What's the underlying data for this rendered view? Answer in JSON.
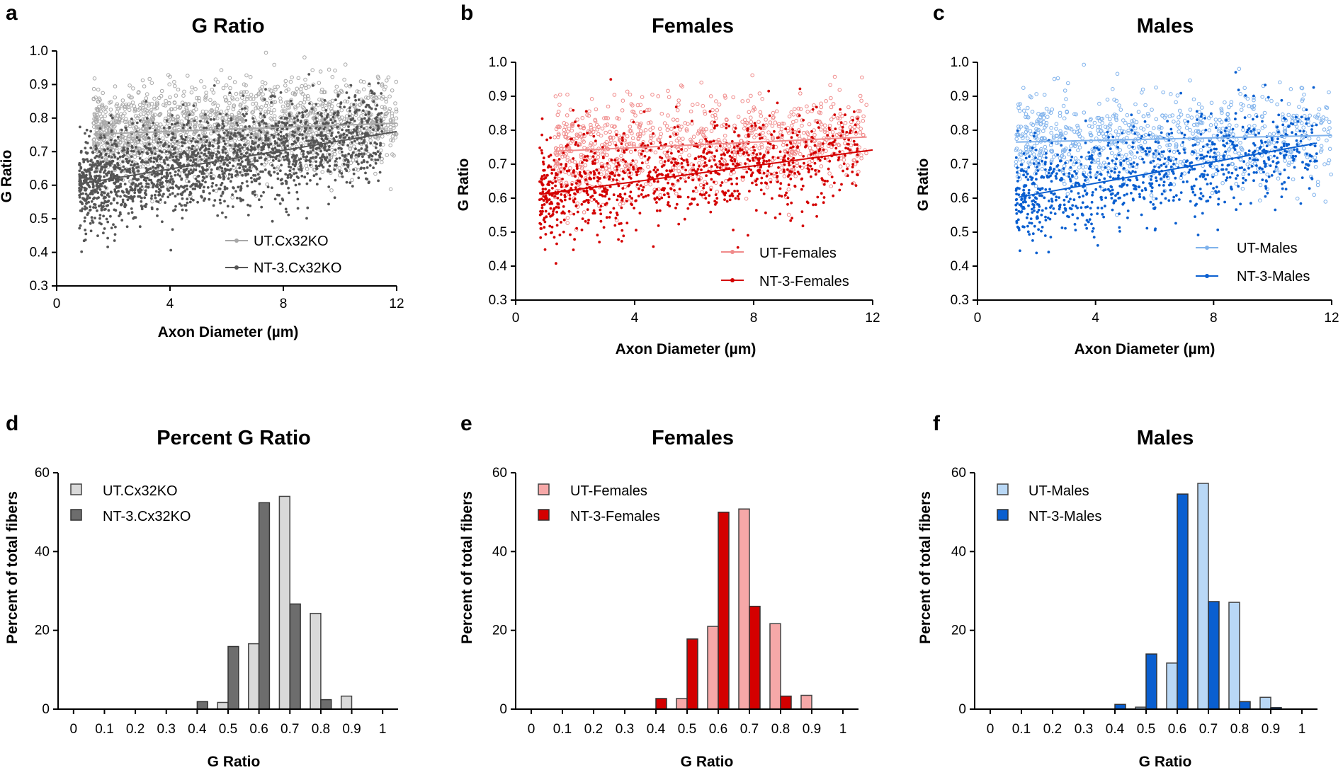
{
  "figure": {
    "panel_letters": [
      "a",
      "b",
      "c",
      "d",
      "e",
      "f"
    ]
  },
  "chart_data": [
    {
      "type": "scatter",
      "panel": "a",
      "title": "G Ratio",
      "xlabel": "Axon Diameter (µm)",
      "ylabel": "G Ratio",
      "xlim": [
        0,
        12
      ],
      "ylim": [
        0.3,
        1.0
      ],
      "xticks": [
        0,
        4,
        8,
        12
      ],
      "yticks": [
        0.3,
        0.4,
        0.5,
        0.6,
        0.7,
        0.8,
        0.9,
        1.0
      ],
      "legend_position": "bottom-right",
      "series": [
        {
          "name": "UT.Cx32KO",
          "color": "#a8a8a8",
          "marker": "open-circle",
          "point_count": 1700,
          "x_range": [
            1.3,
            12.0
          ],
          "y_center": 0.77,
          "y_spread": 0.07,
          "fit_line": {
            "x": [
              1.3,
              12.0
            ],
            "y": [
              0.752,
              0.785
            ]
          }
        },
        {
          "name": "NT-3.Cx32KO",
          "color": "#555555",
          "marker": "filled-dot",
          "point_count": 2000,
          "x_range": [
            0.8,
            11.5
          ],
          "y_center": 0.665,
          "y_spread": 0.07,
          "fit_line": {
            "x": [
              0.9,
              12.0
            ],
            "y": [
              0.605,
              0.76
            ]
          }
        }
      ]
    },
    {
      "type": "scatter",
      "panel": "b",
      "title": "Females",
      "xlabel": "Axon Diameter (µm)",
      "ylabel": "G Ratio",
      "xlim": [
        0,
        12
      ],
      "ylim": [
        0.3,
        1.0
      ],
      "xticks": [
        0,
        4,
        8,
        12
      ],
      "yticks": [
        0.3,
        0.4,
        0.5,
        0.6,
        0.7,
        0.8,
        0.9,
        1.0
      ],
      "legend_position": "bottom-right",
      "series": [
        {
          "name": "UT-Females",
          "color": "#f08a8a",
          "marker": "open-circle",
          "point_count": 900,
          "x_range": [
            1.3,
            11.8
          ],
          "y_center": 0.765,
          "y_spread": 0.07,
          "fit_line": {
            "x": [
              1.3,
              11.8
            ],
            "y": [
              0.738,
              0.78
            ]
          }
        },
        {
          "name": "NT-3-Females",
          "color": "#d40000",
          "marker": "filled-dot",
          "point_count": 1000,
          "x_range": [
            0.8,
            11.5
          ],
          "y_center": 0.665,
          "y_spread": 0.07,
          "fit_line": {
            "x": [
              0.9,
              12.0
            ],
            "y": [
              0.612,
              0.742
            ]
          }
        }
      ]
    },
    {
      "type": "scatter",
      "panel": "c",
      "title": "Males",
      "xlabel": "Axon Diameter (µm)",
      "ylabel": "G Ratio",
      "xlim": [
        0,
        12
      ],
      "ylim": [
        0.3,
        1.0
      ],
      "xticks": [
        0,
        4,
        8,
        12
      ],
      "yticks": [
        0.3,
        0.4,
        0.5,
        0.6,
        0.7,
        0.8,
        0.9,
        1.0
      ],
      "legend_position": "bottom-right",
      "series": [
        {
          "name": "UT-Males",
          "color": "#7fb2ec",
          "marker": "open-circle",
          "point_count": 800,
          "x_range": [
            1.3,
            12.0
          ],
          "y_center": 0.77,
          "y_spread": 0.07,
          "fit_line": {
            "x": [
              1.3,
              12.0
            ],
            "y": [
              0.765,
              0.785
            ]
          }
        },
        {
          "name": "NT-3-Males",
          "color": "#0a5fd0",
          "marker": "filled-dot",
          "point_count": 900,
          "x_range": [
            1.3,
            11.5
          ],
          "y_center": 0.665,
          "y_spread": 0.07,
          "fit_line": {
            "x": [
              1.4,
              11.5
            ],
            "y": [
              0.603,
              0.762
            ]
          }
        }
      ]
    },
    {
      "type": "bar",
      "panel": "d",
      "title": "Percent G Ratio",
      "xlabel": "G Ratio",
      "ylabel": "Percent of total fibers",
      "ylim": [
        0,
        60
      ],
      "yticks": [
        0,
        20,
        40,
        60
      ],
      "categories": [
        "0",
        "0.1",
        "0.2",
        "0.3",
        "0.4",
        "0.5",
        "0.6",
        "0.7",
        "0.8",
        "0.9",
        "1"
      ],
      "legend_position": "top-left",
      "series": [
        {
          "name": "UT.Cx32KO",
          "fill": "#d9d9d9",
          "stroke": "#444444",
          "values": [
            0,
            0,
            0,
            0,
            0,
            1.7,
            16.6,
            54.0,
            24.3,
            3.3,
            0
          ]
        },
        {
          "name": "NT-3.Cx32KO",
          "fill": "#6d6d6d",
          "stroke": "#333333",
          "values": [
            0,
            0,
            0,
            0,
            1.9,
            15.9,
            52.4,
            26.7,
            2.4,
            0,
            0
          ]
        }
      ]
    },
    {
      "type": "bar",
      "panel": "e",
      "title": "Females",
      "xlabel": "G Ratio",
      "ylabel": "Percent of total fibers",
      "ylim": [
        0,
        60
      ],
      "yticks": [
        0,
        20,
        40,
        60
      ],
      "categories": [
        "0",
        "0.1",
        "0.2",
        "0.3",
        "0.4",
        "0.5",
        "0.6",
        "0.7",
        "0.8",
        "0.9",
        "1"
      ],
      "legend_position": "top-left",
      "series": [
        {
          "name": "UT-Females",
          "fill": "#f6a8a8",
          "stroke": "#444444",
          "values": [
            0,
            0,
            0,
            0,
            0,
            2.7,
            21.0,
            50.8,
            21.7,
            3.5,
            0
          ]
        },
        {
          "name": "NT-3-Females",
          "fill": "#d40000",
          "stroke": "#333333",
          "values": [
            0,
            0,
            0,
            0,
            2.7,
            17.8,
            50.0,
            26.1,
            3.3,
            0,
            0
          ]
        }
      ]
    },
    {
      "type": "bar",
      "panel": "f",
      "title": "Males",
      "xlabel": "G Ratio",
      "ylabel": "Percent of total fibers",
      "ylim": [
        0,
        60
      ],
      "yticks": [
        0,
        20,
        40,
        60
      ],
      "categories": [
        "0",
        "0.1",
        "0.2",
        "0.3",
        "0.4",
        "0.5",
        "0.6",
        "0.7",
        "0.8",
        "0.9",
        "1"
      ],
      "legend_position": "top-left",
      "series": [
        {
          "name": "UT-Males",
          "fill": "#b9d8f6",
          "stroke": "#444444",
          "values": [
            0,
            0,
            0,
            0,
            0,
            0.5,
            11.7,
            57.3,
            27.1,
            3.0,
            0
          ]
        },
        {
          "name": "NT-3-Males",
          "fill": "#0a5fd0",
          "stroke": "#333333",
          "values": [
            0,
            0,
            0,
            0,
            1.2,
            14.0,
            54.6,
            27.3,
            1.9,
            0.4,
            0
          ]
        }
      ]
    }
  ]
}
